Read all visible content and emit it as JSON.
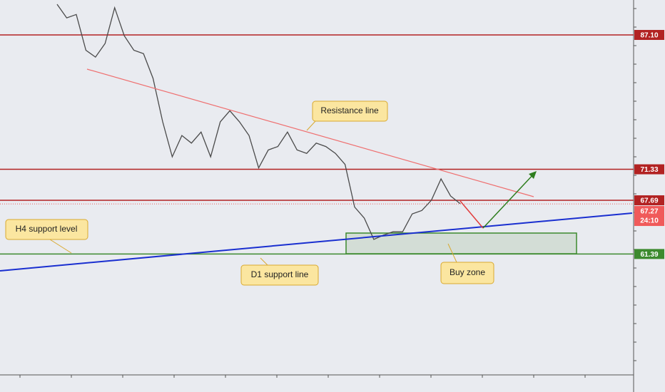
{
  "chart_data": {
    "type": "line",
    "ylim": [
      47.2,
      91.2
    ],
    "series": [
      {
        "color": "#4a4a4a",
        "values": [
          90.7,
          89.1,
          89.5,
          85.3,
          84.5,
          86.1,
          90.3,
          87.0,
          85.3,
          84.9,
          82.0,
          76.9,
          72.8,
          75.3,
          74.4,
          75.7,
          72.8,
          76.9,
          78.2,
          76.9,
          75.3,
          71.5,
          73.6,
          74.0,
          75.7,
          73.6,
          73.2,
          74.4,
          74.0,
          73.2,
          71.9,
          66.9,
          65.6,
          63.1,
          63.6,
          64.0,
          64.0,
          66.1,
          66.5,
          67.7,
          70.2,
          68.2,
          67.3
        ]
      }
    ],
    "levels": [
      {
        "value": 87.1,
        "label": "87.10",
        "color": "#b22222"
      },
      {
        "value": 71.33,
        "label": "71.33",
        "color": "#b22222"
      },
      {
        "value": 67.69,
        "label": "67.69",
        "color": "#b22222"
      },
      {
        "value": 61.39,
        "label": "61.39",
        "color": "#3c8a2e"
      }
    ],
    "current_price": {
      "value": 67.27,
      "label": "67.27",
      "color": "#f05a5a"
    },
    "countdown": "24:10",
    "annotations": {
      "resistance": "Resistance line",
      "h4": "H4 support level",
      "d1": "D1 support line",
      "buy": "Buy zone"
    }
  }
}
